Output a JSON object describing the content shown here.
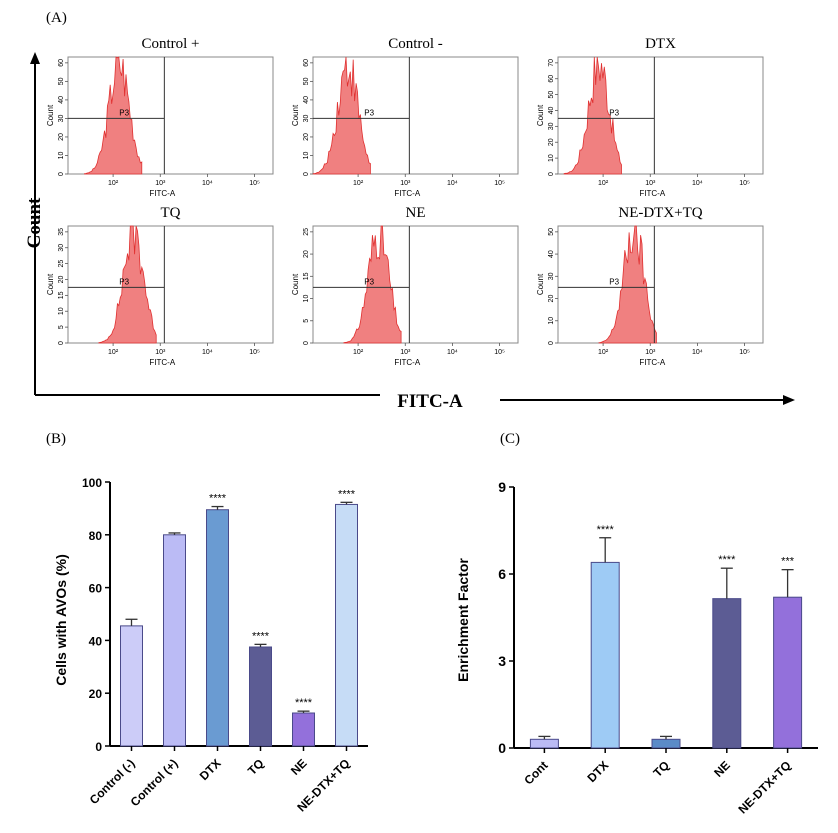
{
  "panel_labels": {
    "a": "(A)",
    "b": "(B)",
    "c": "(C)"
  },
  "flow": {
    "y_axis_label": "Count",
    "x_axis_label": "FITC-A",
    "panel_xlabel": "FITC-A",
    "gate_label": "P3",
    "x_ticks": [
      "10²",
      "10³",
      "10⁴",
      "10⁵"
    ],
    "colors": {
      "histogram": "#f08080",
      "histogram_edge": "#e03030"
    },
    "panels": [
      {
        "title": "Control +",
        "yticks": [
          "0",
          "10",
          "20",
          "30",
          "40",
          "50",
          "60"
        ],
        "peak": 0.25,
        "height": 0.95,
        "gate_y": 30
      },
      {
        "title": "Control -",
        "yticks": [
          "0",
          "10",
          "20",
          "30",
          "40",
          "50",
          "60"
        ],
        "peak": 0.17,
        "height": 0.93,
        "gate_y": 30
      },
      {
        "title": "DTX",
        "yticks": [
          "0",
          "10",
          "20",
          "30",
          "40",
          "50",
          "60",
          "70"
        ],
        "peak": 0.2,
        "height": 0.95,
        "gate_y": 35
      },
      {
        "title": "TQ",
        "yticks": [
          "0",
          "5",
          "10",
          "15",
          "20",
          "25",
          "30",
          "35"
        ],
        "peak": 0.32,
        "height": 0.95,
        "gate_y": 17.5
      },
      {
        "title": "NE",
        "yticks": [
          "0",
          "5",
          "10",
          "15",
          "20",
          "25"
        ],
        "peak": 0.32,
        "height": 0.95,
        "gate_y": 12.5
      },
      {
        "title": "NE-DTX+TQ",
        "yticks": [
          "0",
          "10",
          "20",
          "30",
          "40",
          "50"
        ],
        "peak": 0.37,
        "height": 0.95,
        "gate_y": 25
      }
    ]
  },
  "chart_data": [
    {
      "type": "bar",
      "title": "",
      "ylabel": "Cells with AVOs (%)",
      "xlabel": "",
      "ylim": [
        0,
        100
      ],
      "yticks": [
        "0",
        "20",
        "40",
        "60",
        "80",
        "100"
      ],
      "categories": [
        "Control (-)",
        "Control (+)",
        "DTX",
        "TQ",
        "NE",
        "NE-DTX+TQ"
      ],
      "values": [
        45.5,
        80,
        89.5,
        37.5,
        12.5,
        91.5
      ],
      "errors": [
        2.5,
        0.7,
        1.2,
        1.0,
        0.7,
        0.8
      ],
      "significance": [
        "",
        "",
        "****",
        "****",
        "****",
        "****"
      ],
      "colors": [
        "#ccccf8",
        "#bbbbf5",
        "#6a9bd2",
        "#5c5c94",
        "#9370db",
        "#c6dcf6"
      ]
    },
    {
      "type": "bar",
      "title": "",
      "ylabel": "Enrichment Factor",
      "xlabel": "",
      "ylim": [
        0,
        9
      ],
      "yticks": [
        "0",
        "3",
        "6",
        "9"
      ],
      "categories": [
        "Cont",
        "DTX",
        "TQ",
        "NE",
        "NE-DTX+TQ"
      ],
      "values": [
        0.3,
        6.4,
        0.3,
        5.15,
        5.2
      ],
      "errors": [
        0.1,
        0.85,
        0.1,
        1.05,
        0.95
      ],
      "significance": [
        "",
        "****",
        "",
        "****",
        "***"
      ],
      "colors": [
        "#bbbbf5",
        "#9ecbf5",
        "#5b8bc7",
        "#5c5c94",
        "#9370db"
      ]
    }
  ]
}
